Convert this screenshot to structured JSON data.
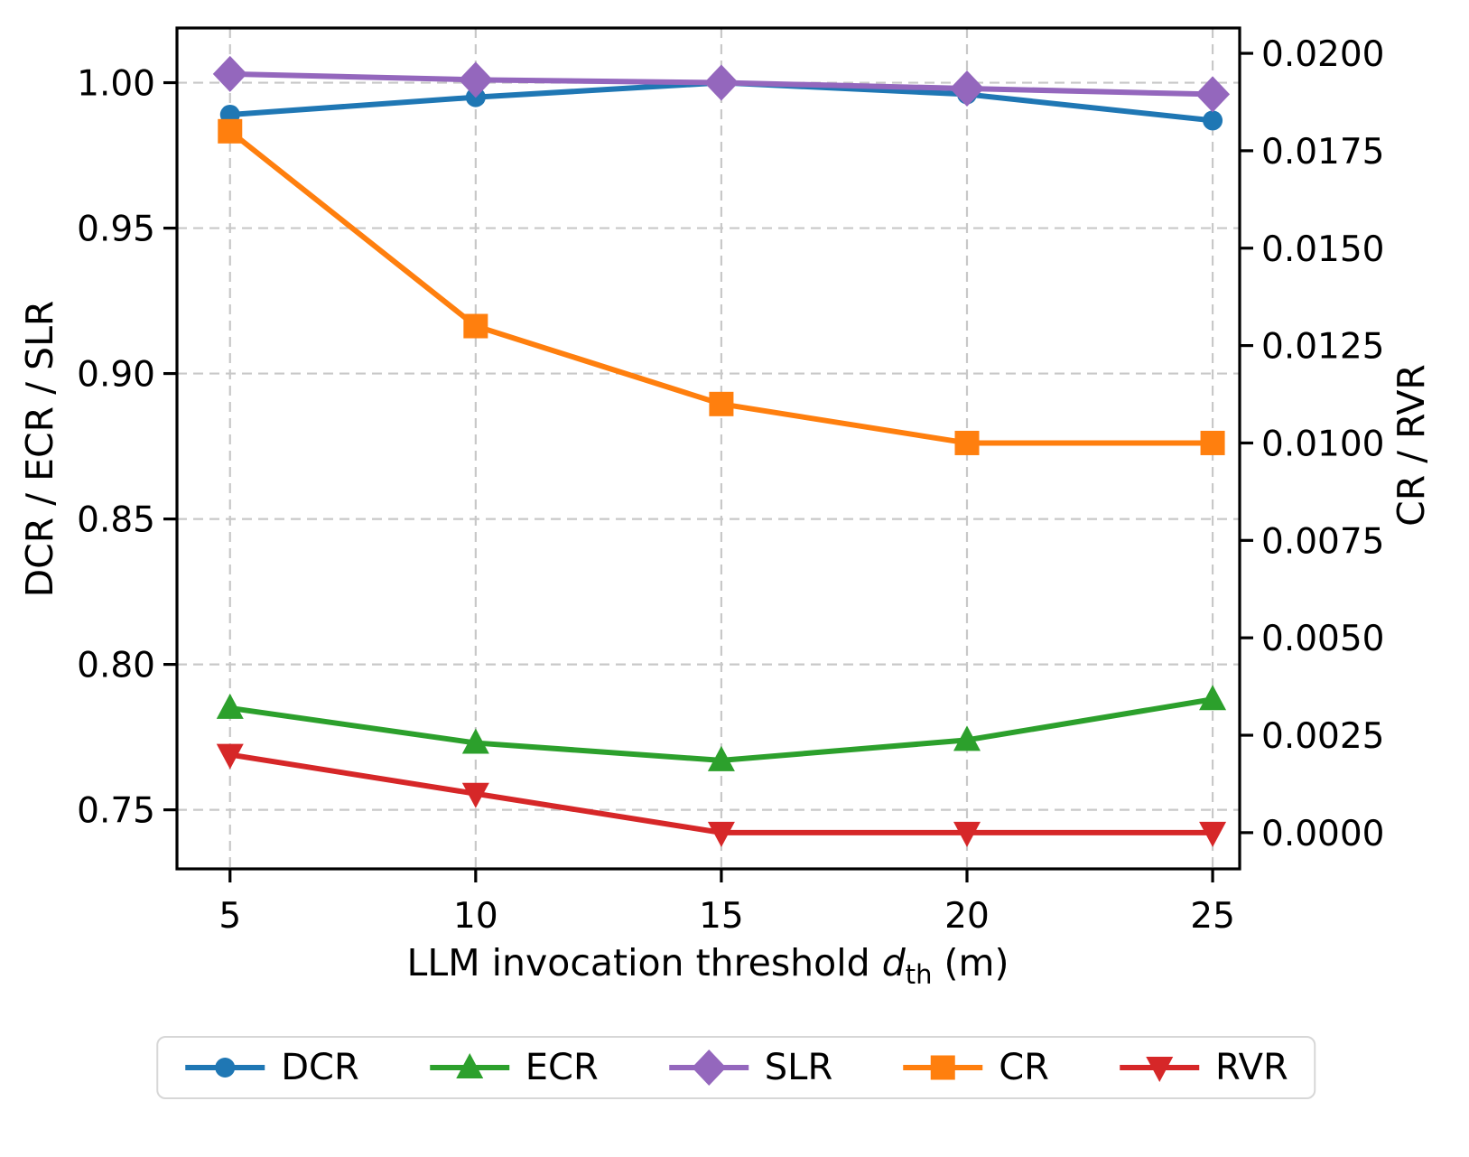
{
  "chart_data": {
    "type": "line",
    "x": [
      5,
      10,
      15,
      20,
      25
    ],
    "xtick_labels": [
      "5",
      "10",
      "15",
      "20",
      "25"
    ],
    "xlabel": {
      "prefix": "LLM invocation threshold ",
      "var": "d",
      "sub": "th",
      "suffix": " (m)"
    },
    "ylabel_left": "DCR / ECR / SLR",
    "ylabel_right": "CR / RVR",
    "ylim_left": [
      0.7297,
      1.0188
    ],
    "ylim_right": [
      -0.00093,
      0.02065
    ],
    "xlim": [
      3.92,
      25.55
    ],
    "yticks_left": [
      0.75,
      0.8,
      0.85,
      0.9,
      0.95,
      1.0
    ],
    "ytick_labels_left": [
      "0.75",
      "0.80",
      "0.85",
      "0.90",
      "0.95",
      "1.00"
    ],
    "yticks_right": [
      0.0,
      0.0025,
      0.005,
      0.0075,
      0.01,
      0.0125,
      0.015,
      0.0175,
      0.02
    ],
    "ytick_labels_right": [
      "0.0000",
      "0.0025",
      "0.0050",
      "0.0075",
      "0.0100",
      "0.0125",
      "0.0150",
      "0.0175",
      "0.0200"
    ],
    "grid": {
      "show": true,
      "style": "dashed",
      "color": "#c8c8c8",
      "which": "both"
    },
    "legend": {
      "position": "bottom-center",
      "border_color": "#d7d7d7"
    },
    "axes_color": "#000000",
    "series": [
      {
        "name": "DCR",
        "axis": "left",
        "color": "#1f77b4",
        "marker": "circle",
        "values": [
          0.989,
          0.995,
          1.0,
          0.996,
          0.987
        ]
      },
      {
        "name": "ECR",
        "axis": "left",
        "color": "#2ca02c",
        "marker": "triangle-up",
        "values": [
          0.785,
          0.773,
          0.767,
          0.774,
          0.788
        ]
      },
      {
        "name": "SLR",
        "axis": "left",
        "color": "#9467bd",
        "marker": "diamond",
        "values": [
          1.003,
          1.001,
          1.0,
          0.998,
          0.996
        ]
      },
      {
        "name": "CR",
        "axis": "right",
        "color": "#ff7f0e",
        "marker": "square",
        "values": [
          0.018,
          0.013,
          0.011,
          0.01,
          0.01
        ]
      },
      {
        "name": "RVR",
        "axis": "right",
        "color": "#d62728",
        "marker": "triangle-down",
        "values": [
          0.002,
          0.001,
          0.0,
          0.0,
          0.0
        ]
      }
    ]
  }
}
